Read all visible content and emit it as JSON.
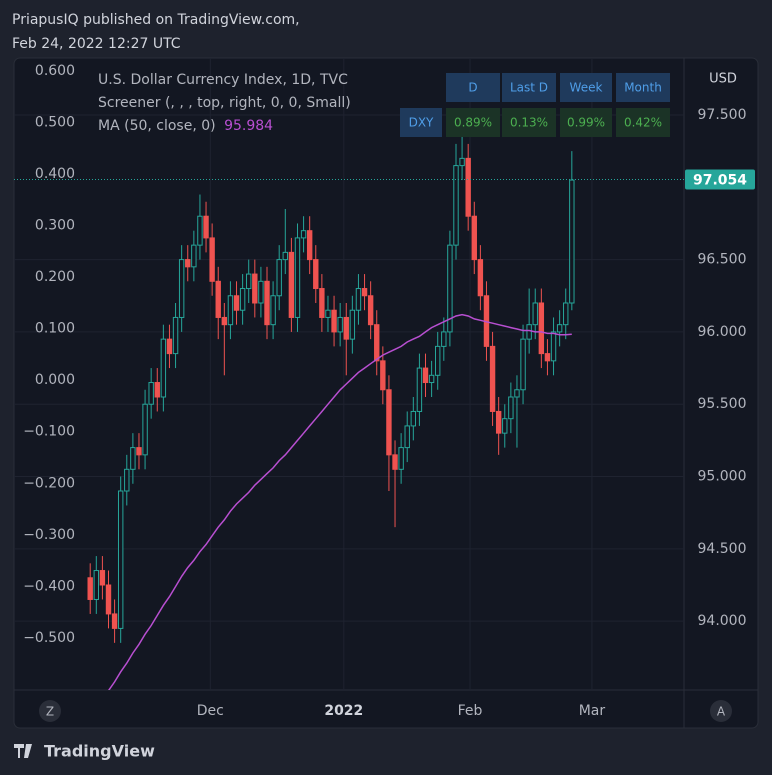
{
  "header": {
    "publisher": "PriapusIQ published on TradingView.com,",
    "timestamp": "Feb 24, 2022 12:27 UTC"
  },
  "footer": {
    "brand": "TradingView"
  },
  "chart_data": {
    "type": "candlestick",
    "title": "U.S. Dollar Currency Index, 1D, TVC",
    "indicator": "Screener (, , , top, right, 0, 0, Small)",
    "axis_label": "USD",
    "scale_buttons": [
      "Z",
      "A"
    ],
    "up_color": "#26a69a",
    "down_color": "#ef5350",
    "grid": true,
    "xlim": [
      -12.5,
      97.4
    ],
    "xticks": [
      {
        "value": 19.7,
        "label": "Dec"
      },
      {
        "value": 41.6,
        "label": "2022"
      },
      {
        "value": 62.3,
        "label": "Feb"
      },
      {
        "value": 82.3,
        "label": "Mar"
      }
    ],
    "ylim": [
      93.524,
      97.894
    ],
    "yticks": [
      {
        "value": 94,
        "label": "94.000"
      },
      {
        "value": 94.5,
        "label": "94.500"
      },
      {
        "value": 95,
        "label": "95.000"
      },
      {
        "value": 95.5,
        "label": "95.500"
      },
      {
        "value": 96,
        "label": "96.000"
      },
      {
        "value": 96.5,
        "label": "96.500"
      },
      {
        "value": 97.5,
        "label": "97.500"
      }
    ],
    "y2lim": [
      -0.601,
      0.625
    ],
    "y2ticks": [
      {
        "value": 0.6,
        "label": "0.600"
      },
      {
        "value": 0.5,
        "label": "0.500"
      },
      {
        "value": 0.4,
        "label": "0.400"
      },
      {
        "value": 0.3,
        "label": "0.300"
      },
      {
        "value": 0.2,
        "label": "0.200"
      },
      {
        "value": 0.1,
        "label": "0.100"
      },
      {
        "value": 0,
        "label": "0.000"
      },
      {
        "value": -0.1,
        "label": "−0.100"
      },
      {
        "value": -0.2,
        "label": "−0.200"
      },
      {
        "value": -0.3,
        "label": "−0.300"
      },
      {
        "value": -0.4,
        "label": "−0.400"
      },
      {
        "value": -0.5,
        "label": "−0.500"
      }
    ],
    "last_price": 97.054,
    "last_price_color": "#26a69a",
    "open": [
      94.3,
      94.15,
      94.35,
      94.25,
      94.05,
      93.95,
      94.9,
      95.05,
      95.2,
      95.15,
      95.5,
      95.65,
      95.55,
      95.95,
      95.85,
      96.1,
      96.5,
      96.45,
      96.6,
      96.8,
      96.65,
      96.35,
      96.1,
      96.05,
      96.25,
      96.15,
      96.3,
      96.4,
      96.2,
      96.35,
      96.05,
      96.25,
      96.5,
      96.55,
      96.1,
      96.65,
      96.7,
      96.5,
      96.3,
      96.1,
      96.15,
      96.0,
      96.1,
      95.95,
      96.15,
      96.3,
      96.25,
      96.05,
      95.8,
      95.6,
      95.15,
      95.05,
      95.2,
      95.35,
      95.45,
      95.75,
      95.65,
      95.7,
      95.9,
      96.0,
      96.6,
      97.15,
      97.2,
      96.8,
      96.5,
      96.25,
      95.9,
      95.45,
      95.3,
      95.4,
      95.55,
      95.6,
      95.95,
      96.05,
      96.2,
      95.85,
      95.8,
      96.0,
      96.05,
      96.2
    ],
    "high": [
      94.4,
      94.45,
      94.45,
      94.35,
      94.15,
      95.0,
      95.15,
      95.3,
      95.3,
      95.6,
      95.75,
      95.75,
      96.05,
      96.05,
      96.2,
      96.6,
      96.6,
      96.7,
      96.95,
      96.9,
      96.75,
      96.45,
      96.2,
      96.35,
      96.35,
      96.4,
      96.5,
      96.5,
      96.45,
      96.45,
      96.35,
      96.6,
      96.85,
      96.65,
      96.75,
      96.8,
      96.8,
      96.6,
      96.4,
      96.25,
      96.25,
      96.2,
      96.2,
      96.25,
      96.4,
      96.4,
      96.35,
      96.15,
      95.9,
      95.7,
      95.25,
      95.3,
      95.45,
      95.55,
      95.85,
      95.85,
      95.8,
      96.0,
      96.1,
      96.7,
      97.3,
      97.45,
      97.3,
      96.9,
      96.6,
      96.35,
      96.0,
      95.55,
      95.5,
      95.65,
      95.7,
      96.05,
      96.3,
      96.3,
      96.3,
      95.95,
      96.1,
      96.15,
      96.3,
      97.25
    ],
    "low": [
      94.05,
      94.05,
      94.15,
      93.95,
      93.85,
      93.85,
      94.8,
      94.95,
      95.05,
      95.05,
      95.4,
      95.45,
      95.45,
      95.75,
      95.75,
      96.0,
      96.35,
      96.35,
      96.5,
      96.55,
      96.25,
      95.95,
      95.7,
      95.95,
      96.05,
      96.05,
      96.2,
      96.1,
      96.1,
      95.95,
      95.95,
      96.15,
      96.4,
      96.0,
      96.0,
      96.55,
      96.4,
      96.2,
      96.0,
      96.0,
      95.9,
      95.9,
      95.7,
      95.85,
      96.05,
      96.15,
      95.95,
      95.7,
      95.5,
      94.9,
      94.65,
      94.95,
      95.1,
      95.25,
      95.35,
      95.55,
      95.55,
      95.6,
      95.8,
      95.9,
      96.5,
      97.05,
      96.7,
      96.4,
      96.15,
      95.8,
      95.35,
      95.15,
      95.2,
      95.3,
      95.2,
      95.5,
      95.85,
      95.95,
      95.75,
      95.7,
      95.7,
      95.9,
      95.95,
      96.15
    ],
    "close": [
      94.15,
      94.35,
      94.25,
      94.05,
      93.95,
      94.9,
      95.05,
      95.2,
      95.15,
      95.5,
      95.65,
      95.55,
      95.95,
      95.85,
      96.1,
      96.5,
      96.45,
      96.6,
      96.8,
      96.65,
      96.35,
      96.1,
      96.05,
      96.25,
      96.15,
      96.3,
      96.4,
      96.2,
      96.35,
      96.05,
      96.25,
      96.5,
      96.55,
      96.1,
      96.65,
      96.7,
      96.5,
      96.3,
      96.1,
      96.15,
      96.0,
      96.1,
      95.95,
      96.15,
      96.3,
      96.25,
      96.05,
      95.8,
      95.6,
      95.15,
      95.05,
      95.2,
      95.35,
      95.45,
      95.75,
      95.65,
      95.7,
      95.9,
      96.0,
      96.6,
      97.15,
      97.2,
      96.8,
      96.5,
      96.25,
      95.9,
      95.45,
      95.3,
      95.4,
      95.55,
      95.6,
      95.95,
      96.05,
      96.2,
      95.85,
      95.8,
      96.0,
      96.05,
      96.2,
      97.05
    ],
    "series": [
      {
        "name": "MA (50, close, 0)",
        "color": "#b84fd1",
        "values": [
          null,
          null,
          null,
          93.52,
          93.58,
          93.65,
          93.71,
          93.78,
          93.84,
          93.91,
          93.97,
          94.04,
          94.11,
          94.17,
          94.24,
          94.31,
          94.37,
          94.42,
          94.48,
          94.53,
          94.59,
          94.65,
          94.7,
          94.76,
          94.81,
          94.85,
          94.89,
          94.94,
          94.98,
          95.02,
          95.06,
          95.11,
          95.15,
          95.2,
          95.25,
          95.3,
          95.35,
          95.4,
          95.45,
          95.5,
          95.55,
          95.6,
          95.64,
          95.68,
          95.72,
          95.75,
          95.78,
          95.81,
          95.84,
          95.86,
          95.88,
          95.9,
          95.93,
          95.95,
          95.97,
          96.0,
          96.03,
          96.05,
          96.07,
          96.09,
          96.11,
          96.12,
          96.11,
          96.09,
          96.08,
          96.07,
          96.06,
          96.05,
          96.04,
          96.03,
          96.02,
          96.01,
          96.01,
          96.0,
          96.0,
          95.99,
          95.99,
          95.98,
          95.98,
          95.984
        ]
      }
    ],
    "screener": {
      "columns": [
        "D",
        "Last D",
        "Week",
        "Month"
      ],
      "row_label": "DXY",
      "cells": [
        "0.89%",
        "0.13%",
        "0.99%",
        "0.42%"
      ]
    }
  }
}
